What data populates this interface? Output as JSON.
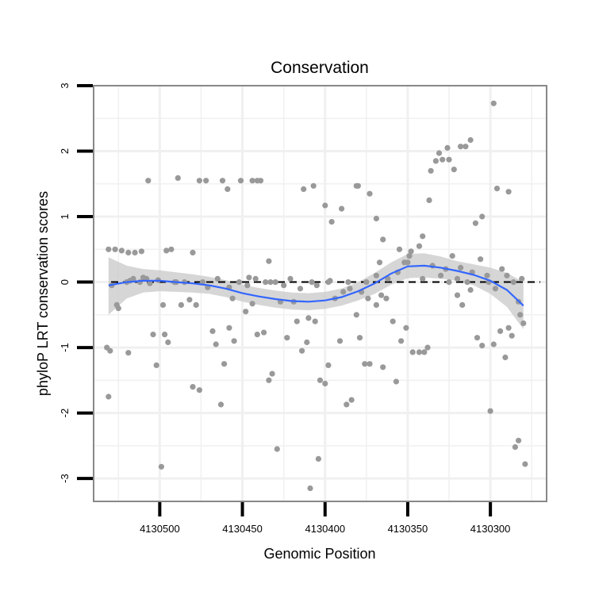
{
  "chart_data": {
    "type": "scatter",
    "title": "Conservation",
    "xlabel": "Genomic Position",
    "ylabel": "phyloP LRT conservation scores",
    "xlim": [
      4130540,
      4130266
    ],
    "x_reversed": true,
    "ylim": [
      -3.35,
      3.0
    ],
    "xticks": [
      4130500,
      4130450,
      4130400,
      4130350,
      4130300
    ],
    "yticks": [
      3,
      2,
      1,
      0,
      -1,
      -2,
      -3
    ],
    "grid": true,
    "reference_line": {
      "y": 0,
      "style": "dashed",
      "color": "#000000"
    },
    "colors": {
      "points": "#999999",
      "smooth": "#3366ff",
      "ribbon": "#cccccc",
      "panel_border": "#888888",
      "grid": "#f0f0f0"
    },
    "points": [
      [
        4130531,
        0.5
      ],
      [
        4130527,
        0.5
      ],
      [
        4130523,
        0.48
      ],
      [
        4130519,
        0.45
      ],
      [
        4130515,
        0.45
      ],
      [
        4130511,
        0.47
      ],
      [
        4130507,
        1.55
      ],
      [
        4130496,
        0.48
      ],
      [
        4130493,
        0.5
      ],
      [
        4130489,
        1.59
      ],
      [
        4130480,
        0.45
      ],
      [
        4130476,
        1.55
      ],
      [
        4130472,
        1.55
      ],
      [
        4130462,
        1.55
      ],
      [
        4130459,
        1.42
      ],
      [
        4130451,
        1.55
      ],
      [
        4130444,
        1.55
      ],
      [
        4130441,
        1.55
      ],
      [
        4130439,
        1.55
      ],
      [
        4130434,
        0.32
      ],
      [
        4130413,
        1.42
      ],
      [
        4130407,
        1.47
      ],
      [
        4130400,
        1.17
      ],
      [
        4130396,
        0.92
      ],
      [
        4130390,
        1.12
      ],
      [
        4130381,
        1.47
      ],
      [
        4130380,
        1.47
      ],
      [
        4130373,
        1.35
      ],
      [
        4130369,
        0.97
      ],
      [
        4130365,
        0.65
      ],
      [
        4130355,
        0.5
      ],
      [
        4130348,
        0.47
      ],
      [
        4130343,
        0.55
      ],
      [
        4130341,
        0.7
      ],
      [
        4130337,
        1.25
      ],
      [
        4130336,
        1.7
      ],
      [
        4130333,
        1.85
      ],
      [
        4130331,
        1.97
      ],
      [
        4130329,
        1.87
      ],
      [
        4130326,
        2.05
      ],
      [
        4130325,
        1.87
      ],
      [
        4130322,
        1.72
      ],
      [
        4130318,
        2.07
      ],
      [
        4130315,
        2.07
      ],
      [
        4130312,
        2.17
      ],
      [
        4130309,
        0.9
      ],
      [
        4130305,
        1.0
      ],
      [
        4130298,
        2.73
      ],
      [
        4130296,
        1.43
      ],
      [
        4130289,
        1.38
      ],
      [
        4130532,
        -1.0
      ],
      [
        4130530,
        -1.05
      ],
      [
        4130531,
        -1.75
      ],
      [
        4130525,
        -0.4
      ],
      [
        4130526,
        -0.35
      ],
      [
        4130519,
        -1.08
      ],
      [
        4130516,
        0.05
      ],
      [
        4130510,
        0.07
      ],
      [
        4130504,
        -0.8
      ],
      [
        4130502,
        -1.27
      ],
      [
        4130497,
        -0.8
      ],
      [
        4130495,
        -0.92
      ],
      [
        4130499,
        -2.82
      ],
      [
        4130487,
        -0.35
      ],
      [
        4130480,
        -1.6
      ],
      [
        4130476,
        -1.65
      ],
      [
        4130468,
        -0.75
      ],
      [
        4130466,
        -0.95
      ],
      [
        4130463,
        -1.87
      ],
      [
        4130461,
        -1.25
      ],
      [
        4130458,
        -0.7
      ],
      [
        4130455,
        -0.9
      ],
      [
        4130448,
        -0.45
      ],
      [
        4130444,
        -0.33
      ],
      [
        4130441,
        -0.8
      ],
      [
        4130437,
        -0.77
      ],
      [
        4130434,
        -1.5
      ],
      [
        4130432,
        -1.4
      ],
      [
        4130429,
        -2.55
      ],
      [
        4130423,
        -0.85
      ],
      [
        4130417,
        -0.6
      ],
      [
        4130414,
        -1.05
      ],
      [
        4130411,
        -0.92
      ],
      [
        4130409,
        -3.15
      ],
      [
        4130406,
        -0.6
      ],
      [
        4130403,
        -1.5
      ],
      [
        4130400,
        -1.55
      ],
      [
        4130398,
        -1.27
      ],
      [
        4130404,
        -2.7
      ],
      [
        4130391,
        -0.9
      ],
      [
        4130387,
        -1.87
      ],
      [
        4130384,
        -1.8
      ],
      [
        4130381,
        -0.5
      ],
      [
        4130379,
        -0.85
      ],
      [
        4130376,
        -1.25
      ],
      [
        4130373,
        -1.25
      ],
      [
        4130369,
        -0.35
      ],
      [
        4130365,
        -1.3
      ],
      [
        4130363,
        -0.25
      ],
      [
        4130359,
        -0.6
      ],
      [
        4130357,
        -1.52
      ],
      [
        4130354,
        -0.9
      ],
      [
        4130351,
        -0.7
      ],
      [
        4130347,
        -1.07
      ],
      [
        4130343,
        -1.07
      ],
      [
        4130340,
        -1.07
      ],
      [
        4130338,
        -1.0
      ],
      [
        4130320,
        -0.2
      ],
      [
        4130317,
        -0.35
      ],
      [
        4130312,
        -0.12
      ],
      [
        4130308,
        -0.85
      ],
      [
        4130305,
        -0.97
      ],
      [
        4130300,
        -1.97
      ],
      [
        4130298,
        -0.95
      ],
      [
        4130294,
        -0.75
      ],
      [
        4130291,
        -1.15
      ],
      [
        4130289,
        -0.7
      ],
      [
        4130287,
        -0.82
      ],
      [
        4130285,
        -2.52
      ],
      [
        4130283,
        -2.42
      ],
      [
        4130279,
        -2.78
      ],
      [
        4130280,
        -0.63
      ],
      [
        4130282,
        -0.5
      ],
      [
        4130529,
        -0.05
      ],
      [
        4130520,
        0.0
      ],
      [
        4130512,
        0.0
      ],
      [
        4130506,
        -0.02
      ],
      [
        4130501,
        0.03
      ],
      [
        4130498,
        -0.35
      ],
      [
        4130491,
        0.0
      ],
      [
        4130485,
        0.0
      ],
      [
        4130482,
        -0.27
      ],
      [
        4130478,
        -0.35
      ],
      [
        4130471,
        -0.08
      ],
      [
        4130465,
        0.05
      ],
      [
        4130458,
        -0.08
      ],
      [
        4130452,
        0.0
      ],
      [
        4130447,
        -0.05
      ],
      [
        4130442,
        0.05
      ],
      [
        4130436,
        0.0
      ],
      [
        4130430,
        0.0
      ],
      [
        4130425,
        -0.05
      ],
      [
        4130421,
        0.05
      ],
      [
        4130419,
        -0.3
      ],
      [
        4130415,
        -0.1
      ],
      [
        4130408,
        0.0
      ],
      [
        4130405,
        -0.05
      ],
      [
        4130398,
        0.0
      ],
      [
        4130394,
        -0.25
      ],
      [
        4130389,
        -0.15
      ],
      [
        4130385,
        -0.1
      ],
      [
        4130378,
        -0.15
      ],
      [
        4130374,
        -0.25
      ],
      [
        4130369,
        0.1
      ],
      [
        4130366,
        -0.2
      ],
      [
        4130362,
        0.05
      ],
      [
        4130356,
        0.15
      ],
      [
        4130352,
        0.3
      ],
      [
        4130349,
        0.4
      ],
      [
        4130341,
        0.05
      ],
      [
        4130335,
        0.25
      ],
      [
        4130330,
        0.1
      ],
      [
        4130325,
        0.0
      ],
      [
        4130320,
        0.05
      ],
      [
        4130314,
        0.0
      ],
      [
        4130311,
        0.15
      ],
      [
        4130306,
        0.35
      ],
      [
        4130302,
        0.1
      ],
      [
        4130301,
        0.0
      ],
      [
        4130297,
        -0.1
      ],
      [
        4130293,
        0.2
      ],
      [
        4130290,
        0.1
      ],
      [
        4130286,
        0.0
      ],
      [
        4130283,
        -0.3
      ],
      [
        4130281,
        0.05
      ],
      [
        4130518,
        0.02
      ],
      [
        4130508,
        0.05
      ],
      [
        4130490,
        0.0
      ],
      [
        4130474,
        0.0
      ],
      [
        4130456,
        -0.25
      ],
      [
        4130446,
        0.07
      ],
      [
        4130433,
        0.0
      ],
      [
        4130427,
        -0.3
      ],
      [
        4130410,
        -0.55
      ],
      [
        4130397,
        0.02
      ],
      [
        4130386,
        0.0
      ],
      [
        4130375,
        0.0
      ],
      [
        4130367,
        0.3
      ],
      [
        4130350,
        0.3
      ],
      [
        4130327,
        0.2
      ],
      [
        4130323,
        0.4
      ],
      [
        4130318,
        0.22
      ]
    ],
    "smooth_line": [
      [
        4130531,
        -0.05
      ],
      [
        4130520,
        0.0
      ],
      [
        4130510,
        0.02
      ],
      [
        4130500,
        0.02
      ],
      [
        4130490,
        0.0
      ],
      [
        4130480,
        -0.02
      ],
      [
        4130470,
        -0.05
      ],
      [
        4130460,
        -0.1
      ],
      [
        4130450,
        -0.17
      ],
      [
        4130440,
        -0.22
      ],
      [
        4130430,
        -0.26
      ],
      [
        4130420,
        -0.29
      ],
      [
        4130410,
        -0.3
      ],
      [
        4130400,
        -0.28
      ],
      [
        4130390,
        -0.23
      ],
      [
        4130380,
        -0.14
      ],
      [
        4130370,
        -0.02
      ],
      [
        4130360,
        0.13
      ],
      [
        4130350,
        0.24
      ],
      [
        4130340,
        0.25
      ],
      [
        4130330,
        0.22
      ],
      [
        4130320,
        0.17
      ],
      [
        4130310,
        0.11
      ],
      [
        4130300,
        0.02
      ],
      [
        4130290,
        -0.12
      ],
      [
        4130280,
        -0.36
      ]
    ],
    "confidence_band": {
      "upper": [
        [
          4130531,
          0.38
        ],
        [
          4130520,
          0.25
        ],
        [
          4130510,
          0.2
        ],
        [
          4130500,
          0.18
        ],
        [
          4130490,
          0.15
        ],
        [
          4130480,
          0.12
        ],
        [
          4130470,
          0.08
        ],
        [
          4130460,
          0.03
        ],
        [
          4130450,
          -0.04
        ],
        [
          4130440,
          -0.09
        ],
        [
          4130430,
          -0.13
        ],
        [
          4130420,
          -0.16
        ],
        [
          4130410,
          -0.17
        ],
        [
          4130400,
          -0.15
        ],
        [
          4130390,
          -0.1
        ],
        [
          4130380,
          0.0
        ],
        [
          4130370,
          0.14
        ],
        [
          4130360,
          0.3
        ],
        [
          4130350,
          0.43
        ],
        [
          4130340,
          0.44
        ],
        [
          4130330,
          0.39
        ],
        [
          4130320,
          0.32
        ],
        [
          4130310,
          0.27
        ],
        [
          4130300,
          0.22
        ],
        [
          4130290,
          0.14
        ],
        [
          4130280,
          0.0
        ]
      ],
      "lower": [
        [
          4130531,
          -0.5
        ],
        [
          4130520,
          -0.25
        ],
        [
          4130510,
          -0.16
        ],
        [
          4130500,
          -0.14
        ],
        [
          4130490,
          -0.15
        ],
        [
          4130480,
          -0.16
        ],
        [
          4130470,
          -0.18
        ],
        [
          4130460,
          -0.23
        ],
        [
          4130450,
          -0.3
        ],
        [
          4130440,
          -0.35
        ],
        [
          4130430,
          -0.39
        ],
        [
          4130420,
          -0.42
        ],
        [
          4130410,
          -0.43
        ],
        [
          4130400,
          -0.41
        ],
        [
          4130390,
          -0.36
        ],
        [
          4130380,
          -0.28
        ],
        [
          4130370,
          -0.18
        ],
        [
          4130360,
          -0.04
        ],
        [
          4130350,
          0.06
        ],
        [
          4130340,
          0.07
        ],
        [
          4130330,
          0.05
        ],
        [
          4130320,
          0.02
        ],
        [
          4130310,
          -0.05
        ],
        [
          4130300,
          -0.18
        ],
        [
          4130290,
          -0.38
        ],
        [
          4130280,
          -0.72
        ]
      ]
    }
  }
}
